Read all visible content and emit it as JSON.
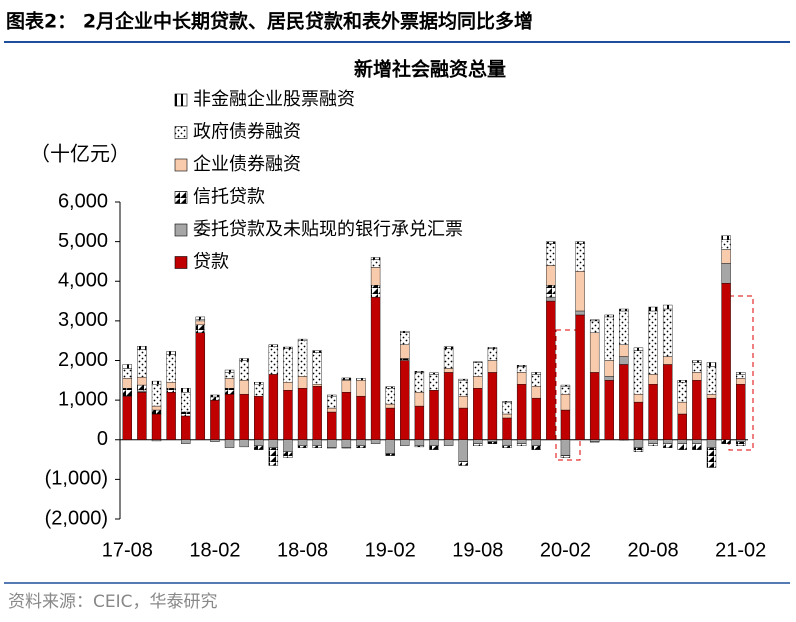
{
  "header": "图表2：  2月企业中长期贷款、居民贷款和表外票据均同比多增",
  "source": "资料来源：CEIC，华泰研究",
  "chart_data": {
    "type": "stacked-bar",
    "title": "新增社会融资总量",
    "y_label": "（十亿元）",
    "categories": [
      "17-08",
      null,
      null,
      null,
      null,
      null,
      "18-02",
      null,
      null,
      null,
      null,
      null,
      "18-08",
      null,
      null,
      null,
      null,
      null,
      "19-02",
      null,
      null,
      null,
      null,
      null,
      "19-08",
      null,
      null,
      null,
      null,
      null,
      "20-02",
      null,
      null,
      null,
      null,
      null,
      "20-08",
      null,
      null,
      null,
      null,
      null,
      "21-02"
    ],
    "ylim": [
      -2000,
      6000
    ],
    "yticks": [
      {
        "value": -2000,
        "label": "(2,000)"
      },
      {
        "value": -1000,
        "label": "(1,000)"
      },
      0,
      {
        "value": 1000,
        "label": "1,000"
      },
      {
        "value": 2000,
        "label": "2,000"
      },
      {
        "value": 3000,
        "label": "3,000"
      },
      {
        "value": 4000,
        "label": "4,000"
      },
      {
        "value": 5000,
        "label": "5,000"
      },
      {
        "value": 6000,
        "label": "6,000"
      }
    ],
    "series": [
      {
        "name": "贷款",
        "color": "#c00000",
        "pattern": "solid",
        "values": [
          1100,
          1200,
          650,
          1200,
          600,
          2700,
          1000,
          1150,
          1150,
          1100,
          1650,
          1250,
          1300,
          1350,
          700,
          1200,
          1100,
          3600,
          800,
          2000,
          850,
          1250,
          1700,
          800,
          1300,
          1700,
          550,
          1400,
          1050,
          3500,
          750,
          3150,
          1700,
          1500,
          1900,
          950,
          1400,
          1900,
          650,
          1500,
          1050,
          3950,
          1400
        ]
      },
      {
        "name": "委托贷款及未贴现的银行承兑汇票",
        "color": "#a6a6a6",
        "pattern": "solid",
        "values": [
          0,
          30,
          -30,
          0,
          -100,
          0,
          -50,
          -200,
          -180,
          -150,
          -200,
          -300,
          -150,
          -150,
          -200,
          -200,
          -150,
          -100,
          -350,
          -150,
          -150,
          -150,
          -150,
          -550,
          -100,
          -50,
          -150,
          -100,
          -150,
          100,
          -400,
          100,
          -50,
          100,
          200,
          -200,
          -100,
          -100,
          -100,
          -100,
          -200,
          500,
          -50
        ]
      },
      {
        "name": "信托贷款",
        "color": "#000000",
        "pattern": "diagonal",
        "values": [
          200,
          150,
          100,
          100,
          100,
          200,
          80,
          150,
          0,
          -100,
          -450,
          -150,
          -50,
          -50,
          -10,
          -10,
          -50,
          300,
          -50,
          50,
          -30,
          -100,
          0,
          -100,
          -50,
          -50,
          -50,
          -50,
          -100,
          300,
          -50,
          0,
          -10,
          0,
          -10,
          -100,
          -50,
          -100,
          -150,
          -150,
          -500,
          -100,
          -100
        ]
      },
      {
        "name": "企业债券融资",
        "color": "#f8cbad",
        "pattern": "solid",
        "values": [
          250,
          200,
          100,
          150,
          0,
          100,
          0,
          250,
          350,
          0,
          0,
          200,
          300,
          50,
          100,
          300,
          400,
          450,
          100,
          350,
          350,
          0,
          100,
          300,
          300,
          300,
          100,
          300,
          300,
          500,
          400,
          1000,
          1000,
          400,
          300,
          200,
          250,
          200,
          300,
          200,
          100,
          350,
          150
        ]
      },
      {
        "name": "政府债券融资",
        "color": "#000000",
        "pattern": "dots",
        "values": [
          250,
          700,
          550,
          700,
          500,
          40,
          0,
          150,
          500,
          300,
          700,
          850,
          900,
          800,
          300,
          20,
          0,
          200,
          400,
          300,
          500,
          400,
          500,
          400,
          350,
          300,
          300,
          150,
          300,
          550,
          200,
          700,
          300,
          1100,
          850,
          1100,
          1600,
          1200,
          500,
          250,
          700,
          250,
          100
        ]
      },
      {
        "name": "非金融企业股票融资",
        "color": "#000000",
        "pattern": "stripes",
        "values": [
          100,
          80,
          80,
          80,
          100,
          60,
          50,
          60,
          50,
          50,
          50,
          40,
          40,
          50,
          30,
          40,
          50,
          50,
          40,
          40,
          30,
          40,
          50,
          30,
          20,
          30,
          20,
          30,
          50,
          50,
          30,
          50,
          30,
          50,
          50,
          70,
          100,
          100,
          50,
          50,
          100,
          100,
          50
        ]
      }
    ]
  }
}
